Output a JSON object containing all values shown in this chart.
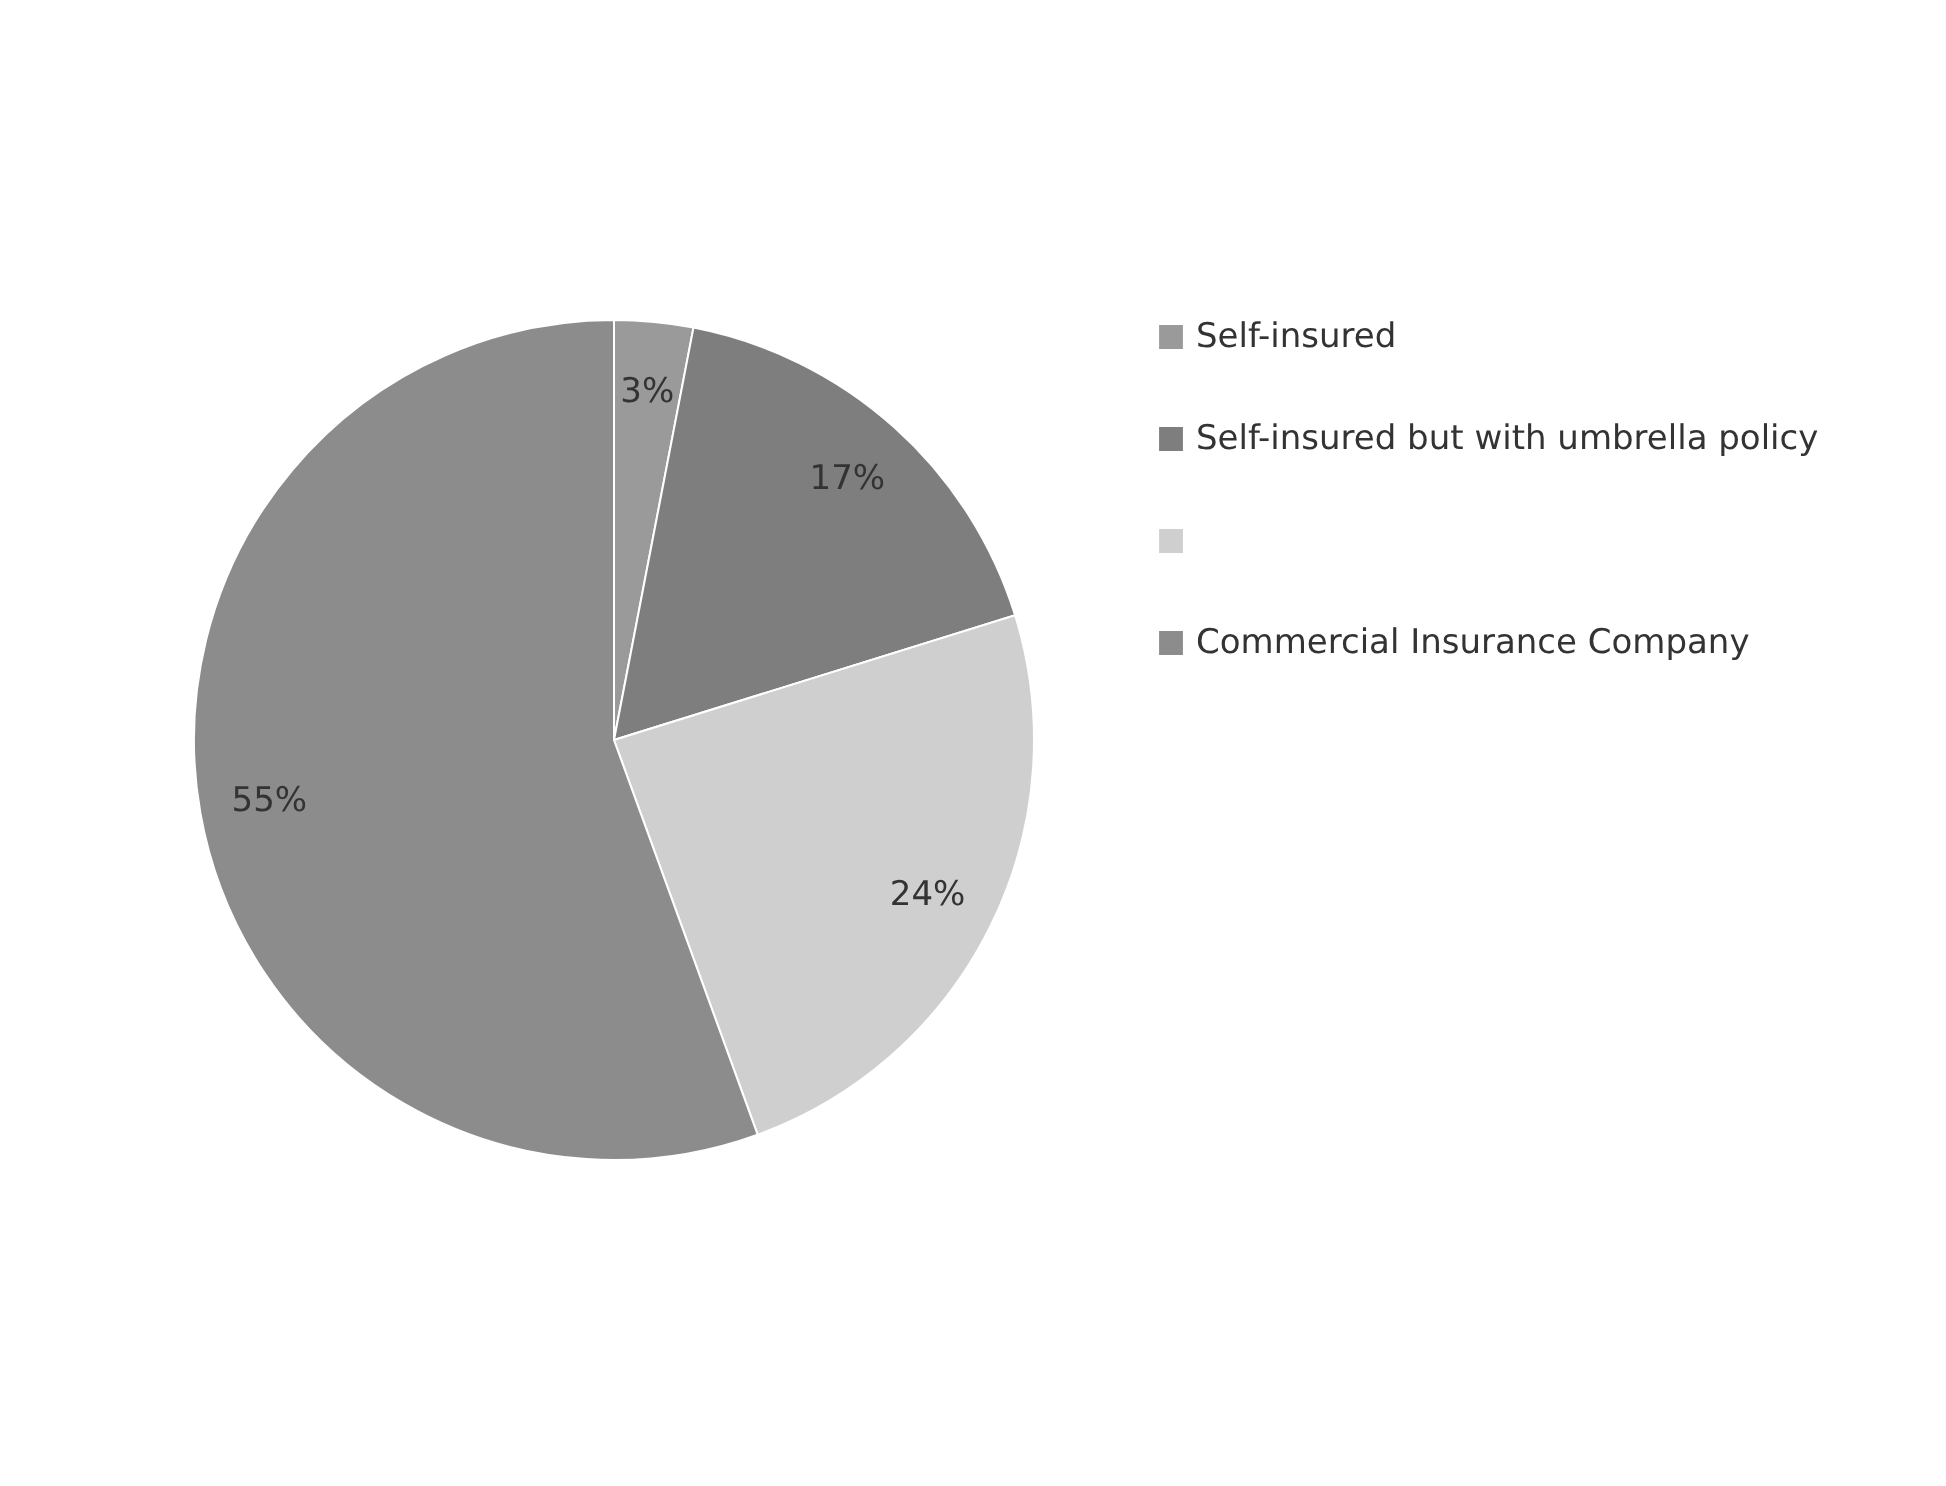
{
  "chart_data": {
    "type": "pie",
    "categories": [
      "Self-insured",
      "Self-insured but with umbrella policy",
      null,
      "Commercial Insurance Company"
    ],
    "values": [
      3,
      17,
      24,
      55
    ],
    "value_labels": [
      "3%",
      "17%",
      "24%",
      "55%"
    ],
    "colors": [
      "#9a9a9a",
      "#7e7e7e",
      "#cfcfcf",
      "#8c8c8c"
    ],
    "legend": "right"
  }
}
